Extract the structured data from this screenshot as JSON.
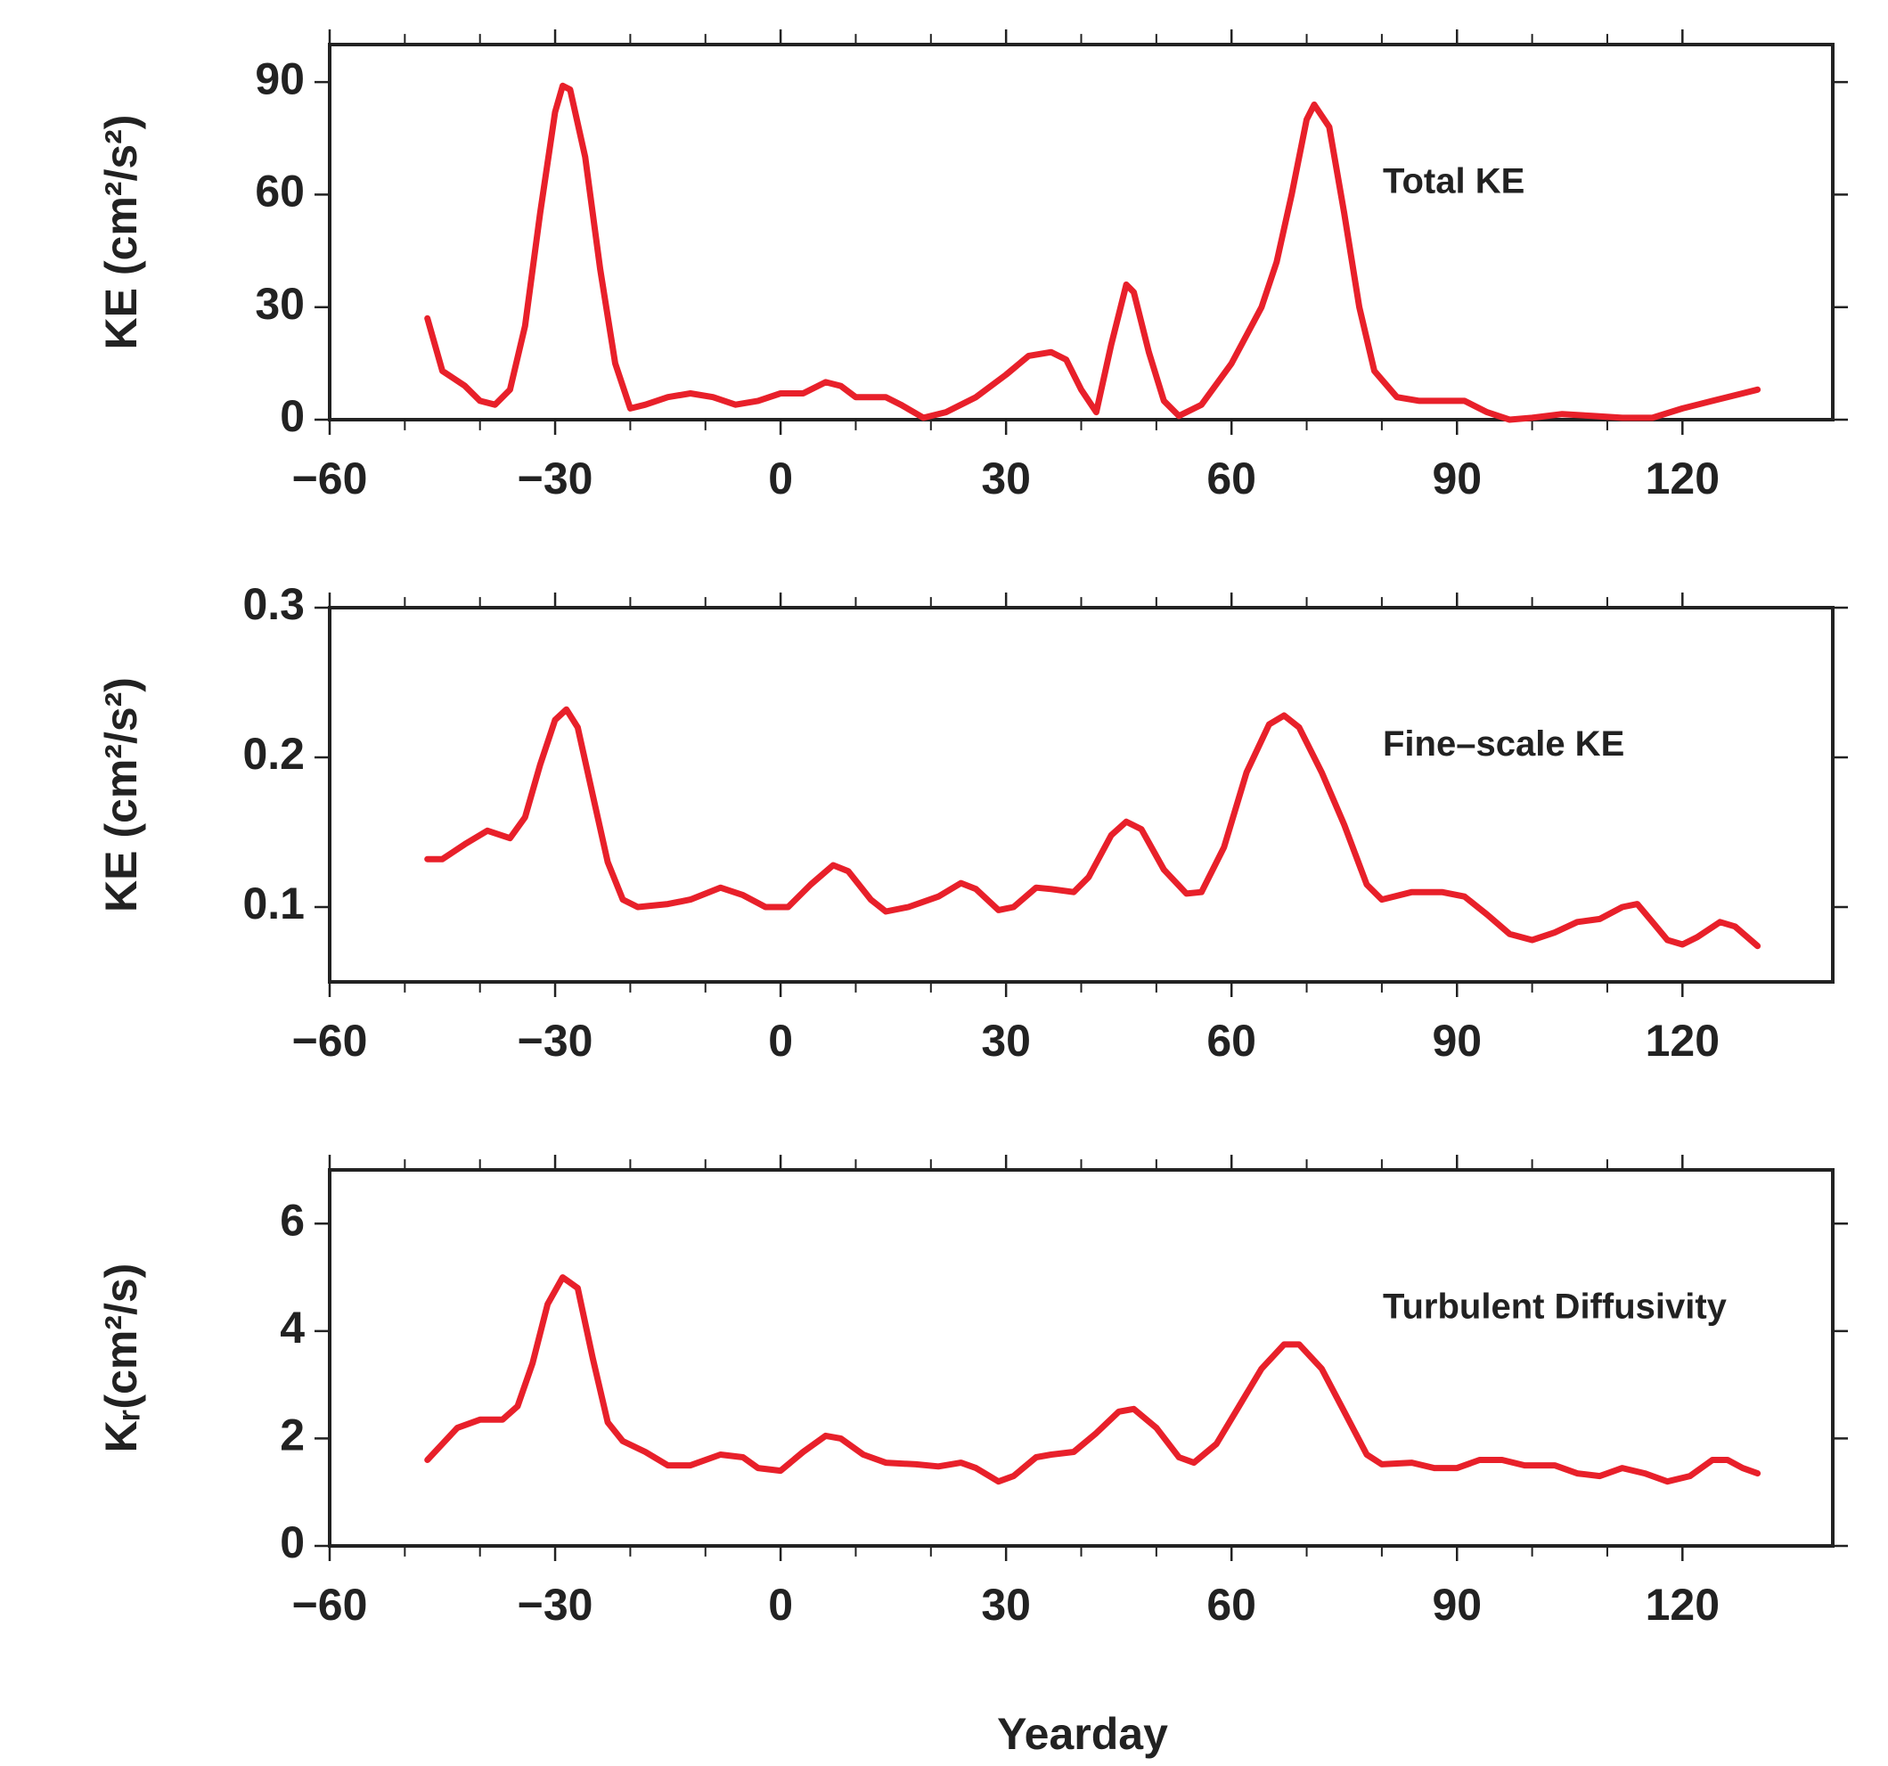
{
  "chart_data": [
    {
      "type": "line",
      "annotation": "Total KE",
      "ylabel": "KE (cm²/s²)",
      "color": "#e8202a",
      "xlim": [
        -60,
        140
      ],
      "ylim": [
        0,
        100
      ],
      "xticks": [
        {
          "value": -60,
          "label": "−60"
        },
        {
          "value": -30,
          "label": "−30"
        },
        0,
        30,
        60,
        90,
        120
      ],
      "yticks": [
        0,
        30,
        60,
        90
      ],
      "x": [
        -47,
        -45,
        -42,
        -40,
        -38,
        -36,
        -34,
        -32,
        -30,
        -29,
        -28,
        -26,
        -24,
        -22,
        -20,
        -18,
        -15,
        -12,
        -9,
        -6,
        -3,
        0,
        3,
        6,
        8,
        10,
        14,
        16,
        19,
        22,
        26,
        30,
        33,
        36,
        38,
        40,
        42,
        44,
        46,
        47,
        49,
        51,
        53,
        56,
        60,
        64,
        66,
        68,
        70,
        71,
        73,
        75,
        77,
        79,
        82,
        85,
        88,
        91,
        94,
        97,
        100,
        104,
        108,
        112,
        116,
        120,
        124,
        128,
        130
      ],
      "values": [
        27,
        13,
        9,
        5,
        4,
        8,
        25,
        55,
        82,
        89,
        88,
        70,
        40,
        15,
        3,
        4,
        6,
        7,
        6,
        4,
        5,
        7,
        7,
        10,
        9,
        6,
        6,
        4,
        0.5,
        2,
        6,
        12,
        17,
        18,
        16,
        8,
        2,
        20,
        36,
        34,
        18,
        5,
        1,
        4,
        15,
        30,
        42,
        60,
        80,
        84,
        78,
        55,
        30,
        13,
        6,
        5,
        5,
        5,
        2,
        0,
        0.5,
        1.5,
        1,
        0.5,
        0.5,
        3,
        5,
        7,
        8
      ]
    },
    {
      "type": "line",
      "annotation": "Fine–scale KE",
      "ylabel": "KE (cm²/s²)",
      "color": "#e8202a",
      "xlim": [
        -60,
        140
      ],
      "ylim": [
        0.05,
        0.3
      ],
      "xticks": [
        {
          "value": -60,
          "label": "−60"
        },
        {
          "value": -30,
          "label": "−30"
        },
        0,
        30,
        60,
        90,
        120
      ],
      "yticks": [
        0.1,
        0.2,
        0.3
      ],
      "x": [
        -47,
        -45,
        -42,
        -39,
        -36,
        -34,
        -32,
        -30,
        -28.5,
        -27,
        -25,
        -23,
        -21,
        -19,
        -15,
        -12,
        -8,
        -5,
        -2,
        1,
        4,
        7,
        9,
        12,
        14,
        17,
        21,
        24,
        26,
        29,
        31,
        34,
        36,
        39,
        41,
        44,
        46,
        48,
        51,
        54,
        56,
        59,
        62,
        65,
        67,
        69,
        72,
        75,
        78,
        80,
        84,
        88,
        91,
        94,
        97,
        100,
        103,
        106,
        109,
        112,
        114,
        116,
        118,
        120,
        122,
        125,
        127,
        130
      ],
      "values": [
        0.132,
        0.132,
        0.142,
        0.151,
        0.146,
        0.16,
        0.195,
        0.225,
        0.232,
        0.22,
        0.175,
        0.13,
        0.105,
        0.1,
        0.102,
        0.105,
        0.113,
        0.108,
        0.1,
        0.1,
        0.115,
        0.128,
        0.124,
        0.105,
        0.097,
        0.1,
        0.107,
        0.116,
        0.112,
        0.098,
        0.1,
        0.113,
        0.112,
        0.11,
        0.12,
        0.148,
        0.157,
        0.152,
        0.125,
        0.109,
        0.11,
        0.14,
        0.19,
        0.222,
        0.228,
        0.22,
        0.19,
        0.155,
        0.115,
        0.105,
        0.11,
        0.11,
        0.107,
        0.095,
        0.082,
        0.078,
        0.083,
        0.09,
        0.092,
        0.1,
        0.102,
        0.09,
        0.078,
        0.075,
        0.08,
        0.09,
        0.087,
        0.074
      ]
    },
    {
      "type": "line",
      "annotation": "Turbulent Diffusivity",
      "ylabel": "Kᵣ(cm²/s)",
      "xlabel": "Yearday",
      "color": "#e8202a",
      "xlim": [
        -60,
        140
      ],
      "ylim": [
        0,
        7
      ],
      "xticks": [
        {
          "value": -60,
          "label": "−60"
        },
        {
          "value": -30,
          "label": "−30"
        },
        0,
        30,
        60,
        90,
        120
      ],
      "yticks": [
        0,
        2,
        4,
        6
      ],
      "x": [
        -47,
        -45,
        -43,
        -40,
        -37,
        -35,
        -33,
        -31,
        -29,
        -27,
        -25,
        -23,
        -21,
        -18,
        -15,
        -12,
        -8,
        -5,
        -3,
        0,
        3,
        6,
        8,
        11,
        14,
        18,
        21,
        24,
        26,
        29,
        31,
        34,
        36,
        39,
        42,
        45,
        47,
        50,
        53,
        55,
        58,
        61,
        64,
        67,
        69,
        72,
        75,
        78,
        80,
        84,
        87,
        90,
        93,
        96,
        99,
        103,
        106,
        109,
        112,
        115,
        118,
        121,
        124,
        126,
        128,
        130
      ],
      "values": [
        1.6,
        1.9,
        2.2,
        2.35,
        2.35,
        2.6,
        3.4,
        4.5,
        5.0,
        4.8,
        3.5,
        2.3,
        1.95,
        1.75,
        1.5,
        1.5,
        1.7,
        1.65,
        1.45,
        1.4,
        1.75,
        2.05,
        2.0,
        1.7,
        1.55,
        1.52,
        1.48,
        1.55,
        1.45,
        1.2,
        1.3,
        1.65,
        1.7,
        1.75,
        2.1,
        2.5,
        2.55,
        2.2,
        1.65,
        1.55,
        1.9,
        2.6,
        3.3,
        3.75,
        3.75,
        3.3,
        2.5,
        1.7,
        1.52,
        1.55,
        1.45,
        1.45,
        1.6,
        1.6,
        1.5,
        1.5,
        1.35,
        1.3,
        1.45,
        1.35,
        1.2,
        1.3,
        1.6,
        1.6,
        1.45,
        1.35
      ]
    }
  ]
}
